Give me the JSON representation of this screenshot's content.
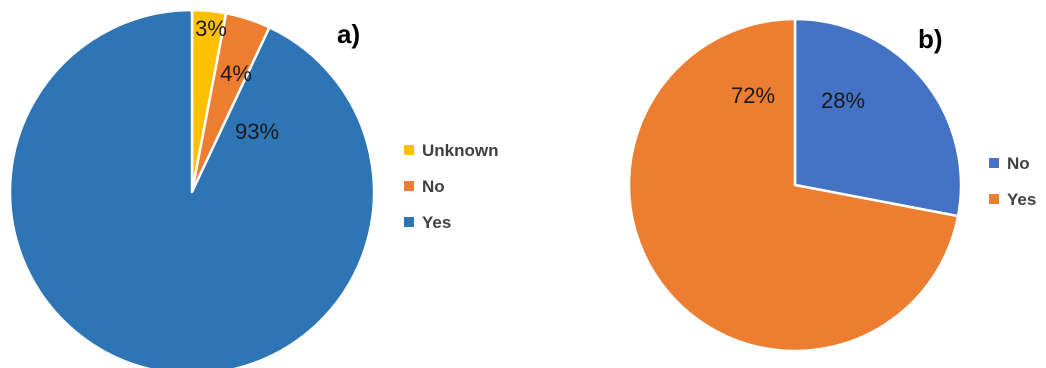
{
  "chart_data": [
    {
      "type": "pie",
      "panel_label": "a)",
      "start_angle_deg": 0,
      "direction": "clockwise",
      "slices": [
        {
          "label": "Unknown",
          "value": 3,
          "data_label": "3%",
          "color": "#FFC000"
        },
        {
          "label": "No",
          "value": 4,
          "data_label": "4%",
          "color": "#ED7D31"
        },
        {
          "label": "Yes",
          "value": 93,
          "data_label": "93%",
          "color": "#2E75B6"
        }
      ],
      "legend": {
        "placement": "right",
        "items": [
          "Unknown",
          "No",
          "Yes"
        ]
      }
    },
    {
      "type": "pie",
      "panel_label": "b)",
      "start_angle_deg": 0,
      "direction": "clockwise",
      "slices": [
        {
          "label": "No",
          "value": 28,
          "data_label": "28%",
          "color": "#4472C4"
        },
        {
          "label": "Yes",
          "value": 72,
          "data_label": "72%",
          "color": "#ED7D31"
        }
      ],
      "legend": {
        "placement": "right",
        "items": [
          "No",
          "Yes"
        ]
      }
    }
  ]
}
